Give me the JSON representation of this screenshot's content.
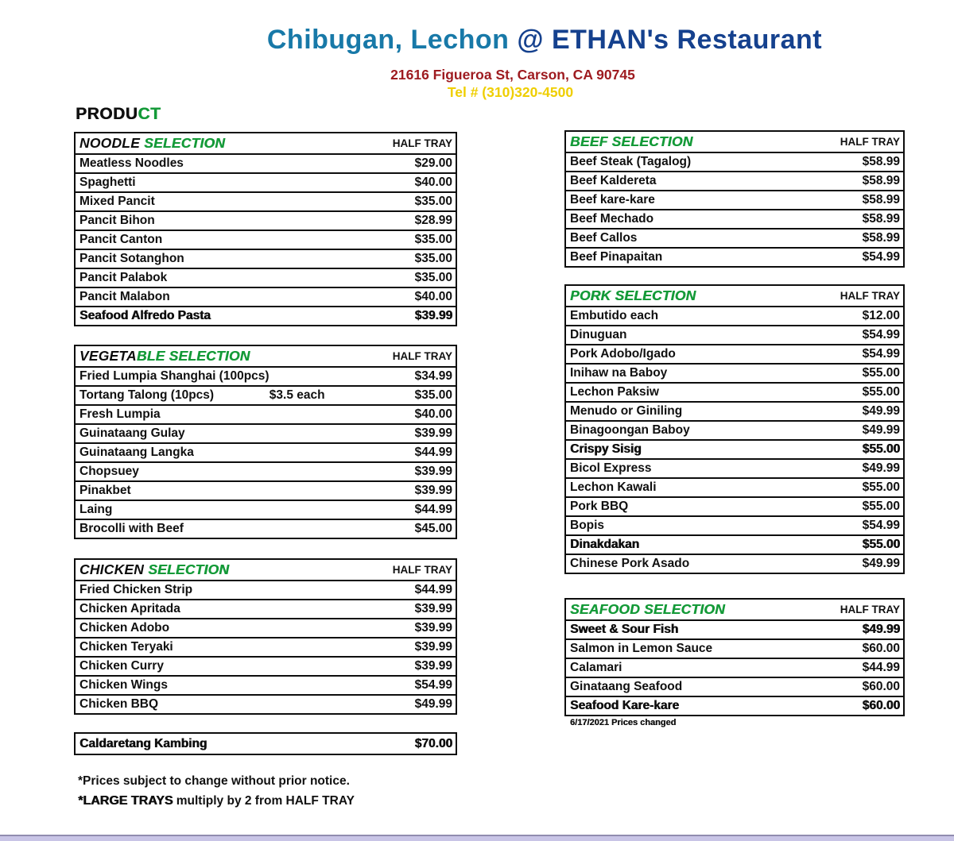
{
  "header": {
    "title_part1": "Chibugan, Lechon ",
    "title_part2": "@ ETHAN's Restaurant",
    "address": "21616 Figueroa St, Carson, CA 90745",
    "phone": "Tel # (310)320-4500"
  },
  "product": {
    "black": "PRODU",
    "green": "CT"
  },
  "sections": [
    {
      "title_black": "NOODLE ",
      "title_green": "SELECTION",
      "col": "HALF TRAY",
      "items": [
        {
          "name": "Meatless Noodles",
          "price": "$29.00"
        },
        {
          "name": "Spaghetti",
          "price": "$40.00"
        },
        {
          "name": "Mixed Pancit",
          "price": "$35.00"
        },
        {
          "name": "Pancit Bihon",
          "price": "$28.99"
        },
        {
          "name": "Pancit Canton",
          "price": "$35.00"
        },
        {
          "name": "Pancit Sotanghon",
          "price": "$35.00"
        },
        {
          "name": "Pancit Palabok",
          "price": "$35.00"
        },
        {
          "name": "Pancit Malabon",
          "price": "$40.00"
        },
        {
          "name": "Seafood Alfredo Pasta",
          "price": "$39.99",
          "heavy": true
        }
      ]
    },
    {
      "title_black": "VEGETA",
      "title_green": "BLE SELECTION",
      "col": "HALF TRAY",
      "items": [
        {
          "name": "Fried Lumpia Shanghai (100pcs)",
          "price": "$34.99"
        },
        {
          "name": "Tortang Talong (10pcs)",
          "note": "$3.5 each",
          "price": "$35.00"
        },
        {
          "name": "Fresh Lumpia",
          "price": "$40.00"
        },
        {
          "name": "Guinataang Gulay",
          "price": "$39.99"
        },
        {
          "name": "Guinataang Langka",
          "price": "$44.99"
        },
        {
          "name": "Chopsuey",
          "price": "$39.99"
        },
        {
          "name": "Pinakbet",
          "price": "$39.99"
        },
        {
          "name": "Laing",
          "price": "$44.99"
        },
        {
          "name": "Brocolli with Beef",
          "price": "$45.00"
        }
      ]
    },
    {
      "title_black": "CHICKEN ",
      "title_green": "SELECTION",
      "col": "HALF TRAY",
      "items": [
        {
          "name": "Fried Chicken Strip",
          "price": "$44.99"
        },
        {
          "name": "Chicken Apritada",
          "price": "$39.99"
        },
        {
          "name": "Chicken Adobo",
          "price": "$39.99"
        },
        {
          "name": "Chicken Teryaki",
          "price": "$39.99"
        },
        {
          "name": "Chicken Curry",
          "price": "$39.99"
        },
        {
          "name": "Chicken Wings",
          "price": "$54.99"
        },
        {
          "name": "Chicken BBQ",
          "price": "$49.99"
        }
      ]
    },
    {
      "items": [
        {
          "name": "Caldaretang Kambing",
          "price": "$70.00",
          "heavy": true
        }
      ]
    },
    {
      "title_black": "",
      "title_green": "BEEF SELECTION",
      "col": "HALF TRAY",
      "items": [
        {
          "name": "Beef Steak (Tagalog)",
          "price": "$58.99"
        },
        {
          "name": "Beef Kaldereta",
          "price": "$58.99"
        },
        {
          "name": "Beef kare-kare",
          "price": "$58.99"
        },
        {
          "name": "Beef Mechado",
          "price": "$58.99"
        },
        {
          "name": "Beef Callos",
          "price": "$58.99"
        },
        {
          "name": "Beef Pinapaitan",
          "price": "$54.99"
        }
      ]
    },
    {
      "title_black": "",
      "title_green": "PORK SELECTION",
      "col": "HALF TRAY",
      "items": [
        {
          "name": "Embutido each",
          "price": "$12.00"
        },
        {
          "name": "Dinuguan",
          "price": "$54.99"
        },
        {
          "name": "Pork Adobo/Igado",
          "price": "$54.99"
        },
        {
          "name": "Inihaw na Baboy",
          "price": "$55.00"
        },
        {
          "name": "Lechon Paksiw",
          "price": "$55.00"
        },
        {
          "name": "Menudo or Giniling",
          "price": "$49.99"
        },
        {
          "name": "Binagoongan Baboy",
          "price": "$49.99"
        },
        {
          "name": "Crispy Sisig",
          "price": "$55.00",
          "heavy": true
        },
        {
          "name": "Bicol Express",
          "price": "$49.99"
        },
        {
          "name": "Lechon Kawali",
          "price": "$55.00"
        },
        {
          "name": "Pork BBQ",
          "price": "$55.00"
        },
        {
          "name": "Bopis",
          "price": "$54.99"
        },
        {
          "name": "Dinakdakan",
          "price": "$55.00",
          "heavy": true
        },
        {
          "name": "Chinese Pork Asado",
          "price": "$49.99"
        }
      ]
    },
    {
      "title_black": "",
      "title_green": "SEAFOOD SELECTION",
      "col": "HALF TRAY",
      "items": [
        {
          "name": "Sweet & Sour Fish",
          "price": "$49.99",
          "heavy": true
        },
        {
          "name": "Salmon in Lemon Sauce",
          "price": "$60.00"
        },
        {
          "name": "Calamari",
          "price": "$44.99"
        },
        {
          "name": "Ginataang Seafood",
          "price": "$60.00"
        },
        {
          "name": "Seafood Kare-kare",
          "price": "$60.00",
          "heavy": true
        }
      ]
    }
  ],
  "notes": {
    "line1": "*Prices subject to change without prior notice.",
    "line2_strong": "*LARGE TRAYS",
    "line2_rest": " multiply by 2 from HALF TRAY"
  },
  "right_note": "6/17/2021 Prices changed",
  "colors": {
    "green": "#149a38",
    "title_teal": "#1879a8",
    "title_navy": "#15418e",
    "address_red": "#9e1b20",
    "phone_yellow": "#efce00",
    "bottom_bar": "#c8c4e6"
  }
}
